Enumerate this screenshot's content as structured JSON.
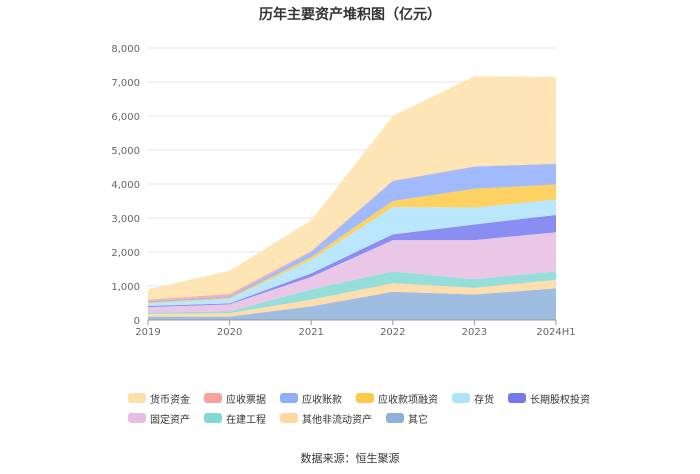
{
  "chart_data": {
    "type": "area",
    "stacked": true,
    "title": "历年主要资产堆积图（亿元）",
    "categories": [
      "2019",
      "2020",
      "2021",
      "2022",
      "2023",
      "2024H1"
    ],
    "yticks": [
      "0",
      "1,000",
      "2,000",
      "3,000",
      "4,000",
      "5,000",
      "6,000",
      "7,000",
      "8,000"
    ],
    "ylim": [
      0,
      8000
    ],
    "grid": true,
    "legend_position": "bottom",
    "series_stack_order_bottom_to_top": [
      "其它",
      "其他非流动资产",
      "在建工程",
      "固定资产",
      "长期股权投资",
      "存货",
      "应收款项融资",
      "应收账款",
      "应收票据",
      "货币资金"
    ],
    "series": [
      {
        "name": "货币资金",
        "color": "#fde0a8",
        "values": [
          300,
          680,
          900,
          1900,
          2650,
          2550
        ]
      },
      {
        "name": "应收票据",
        "color": "#f9a29c",
        "values": [
          50,
          70,
          30,
          20,
          10,
          10
        ]
      },
      {
        "name": "应收账款",
        "color": "#91aefb",
        "values": [
          40,
          50,
          150,
          580,
          650,
          600
        ]
      },
      {
        "name": "应收款项融资",
        "color": "#fdc947",
        "values": [
          20,
          30,
          80,
          180,
          550,
          450
        ]
      },
      {
        "name": "存货",
        "color": "#aee3fb",
        "values": [
          80,
          130,
          400,
          800,
          500,
          450
        ]
      },
      {
        "name": "长期股权投资",
        "color": "#7579ee",
        "values": [
          30,
          30,
          100,
          170,
          460,
          510
        ]
      },
      {
        "name": "固定资产",
        "color": "#e7bde3",
        "values": [
          160,
          210,
          370,
          920,
          1150,
          1150
        ]
      },
      {
        "name": "在建工程",
        "color": "#84d8d4",
        "values": [
          40,
          50,
          300,
          350,
          250,
          250
        ]
      },
      {
        "name": "其他非流动资产",
        "color": "#fed89f",
        "values": [
          80,
          100,
          200,
          250,
          200,
          250
        ]
      },
      {
        "name": "其它",
        "color": "#8eb0dc",
        "values": [
          100,
          100,
          400,
          830,
          750,
          930
        ]
      }
    ],
    "source": "数据来源：恒生聚源"
  }
}
